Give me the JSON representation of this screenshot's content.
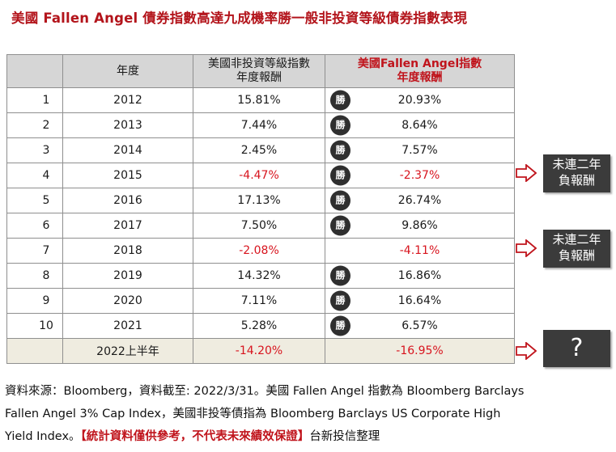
{
  "title": "美國 Fallen Angel 債券指數高達九成機率勝一般非投資等級債券指數表現",
  "table": {
    "headers": {
      "index": "",
      "year": "年度",
      "hy_line1": "美國非投資等級指數",
      "hy_line2": "年度報酬",
      "fa_line1": "美國Fallen Angel指數",
      "fa_line2": "年度報酬"
    },
    "win_label": "勝",
    "rows": [
      {
        "idx": "1",
        "year": "2012",
        "hy": "15.81%",
        "fa": "20.93%",
        "hy_neg": false,
        "fa_neg": false,
        "win": true
      },
      {
        "idx": "2",
        "year": "2013",
        "hy": "7.44%",
        "fa": "8.64%",
        "hy_neg": false,
        "fa_neg": false,
        "win": true
      },
      {
        "idx": "3",
        "year": "2014",
        "hy": "2.45%",
        "fa": "7.57%",
        "hy_neg": false,
        "fa_neg": false,
        "win": true
      },
      {
        "idx": "4",
        "year": "2015",
        "hy": "-4.47%",
        "fa": "-2.37%",
        "hy_neg": true,
        "fa_neg": true,
        "win": true
      },
      {
        "idx": "5",
        "year": "2016",
        "hy": "17.13%",
        "fa": "26.74%",
        "hy_neg": false,
        "fa_neg": false,
        "win": true
      },
      {
        "idx": "6",
        "year": "2017",
        "hy": "7.50%",
        "fa": "9.86%",
        "hy_neg": false,
        "fa_neg": false,
        "win": true
      },
      {
        "idx": "7",
        "year": "2018",
        "hy": "-2.08%",
        "fa": "-4.11%",
        "hy_neg": true,
        "fa_neg": true,
        "win": false
      },
      {
        "idx": "8",
        "year": "2019",
        "hy": "14.32%",
        "fa": "16.86%",
        "hy_neg": false,
        "fa_neg": false,
        "win": true
      },
      {
        "idx": "9",
        "year": "2020",
        "hy": "7.11%",
        "fa": "16.64%",
        "hy_neg": false,
        "fa_neg": false,
        "win": true
      },
      {
        "idx": "10",
        "year": "2021",
        "hy": "5.28%",
        "fa": "6.57%",
        "hy_neg": false,
        "fa_neg": false,
        "win": true
      }
    ],
    "half_year": {
      "idx": "",
      "year": "2022上半年",
      "hy": "-14.20%",
      "fa": "-16.95%"
    }
  },
  "notes": {
    "note1_line1": "未連二年",
    "note1_line2": "負報酬",
    "note2_line1": "未連二年",
    "note2_line2": "負報酬",
    "question": "?"
  },
  "footer": {
    "line1": "資料來源：Bloomberg，資料截至: 2022/3/31。美國 Fallen Angel  指數為 Bloomberg Barclays",
    "line2": "Fallen Angel 3% Cap Index，美國非投等債指為 Bloomberg Barclays US Corporate High",
    "line3_pre": "Yield Index。",
    "line3_warn": "【統計資料僅供參考，不代表未來績效保證】",
    "line3_post": "台新投信整理"
  },
  "colors": {
    "accent_red": "#c0141c",
    "negative_red": "#d8141e",
    "header_gray": "#d6d6d6",
    "note_dark": "#3b3b3b",
    "half_year_bg": "#efece0"
  }
}
